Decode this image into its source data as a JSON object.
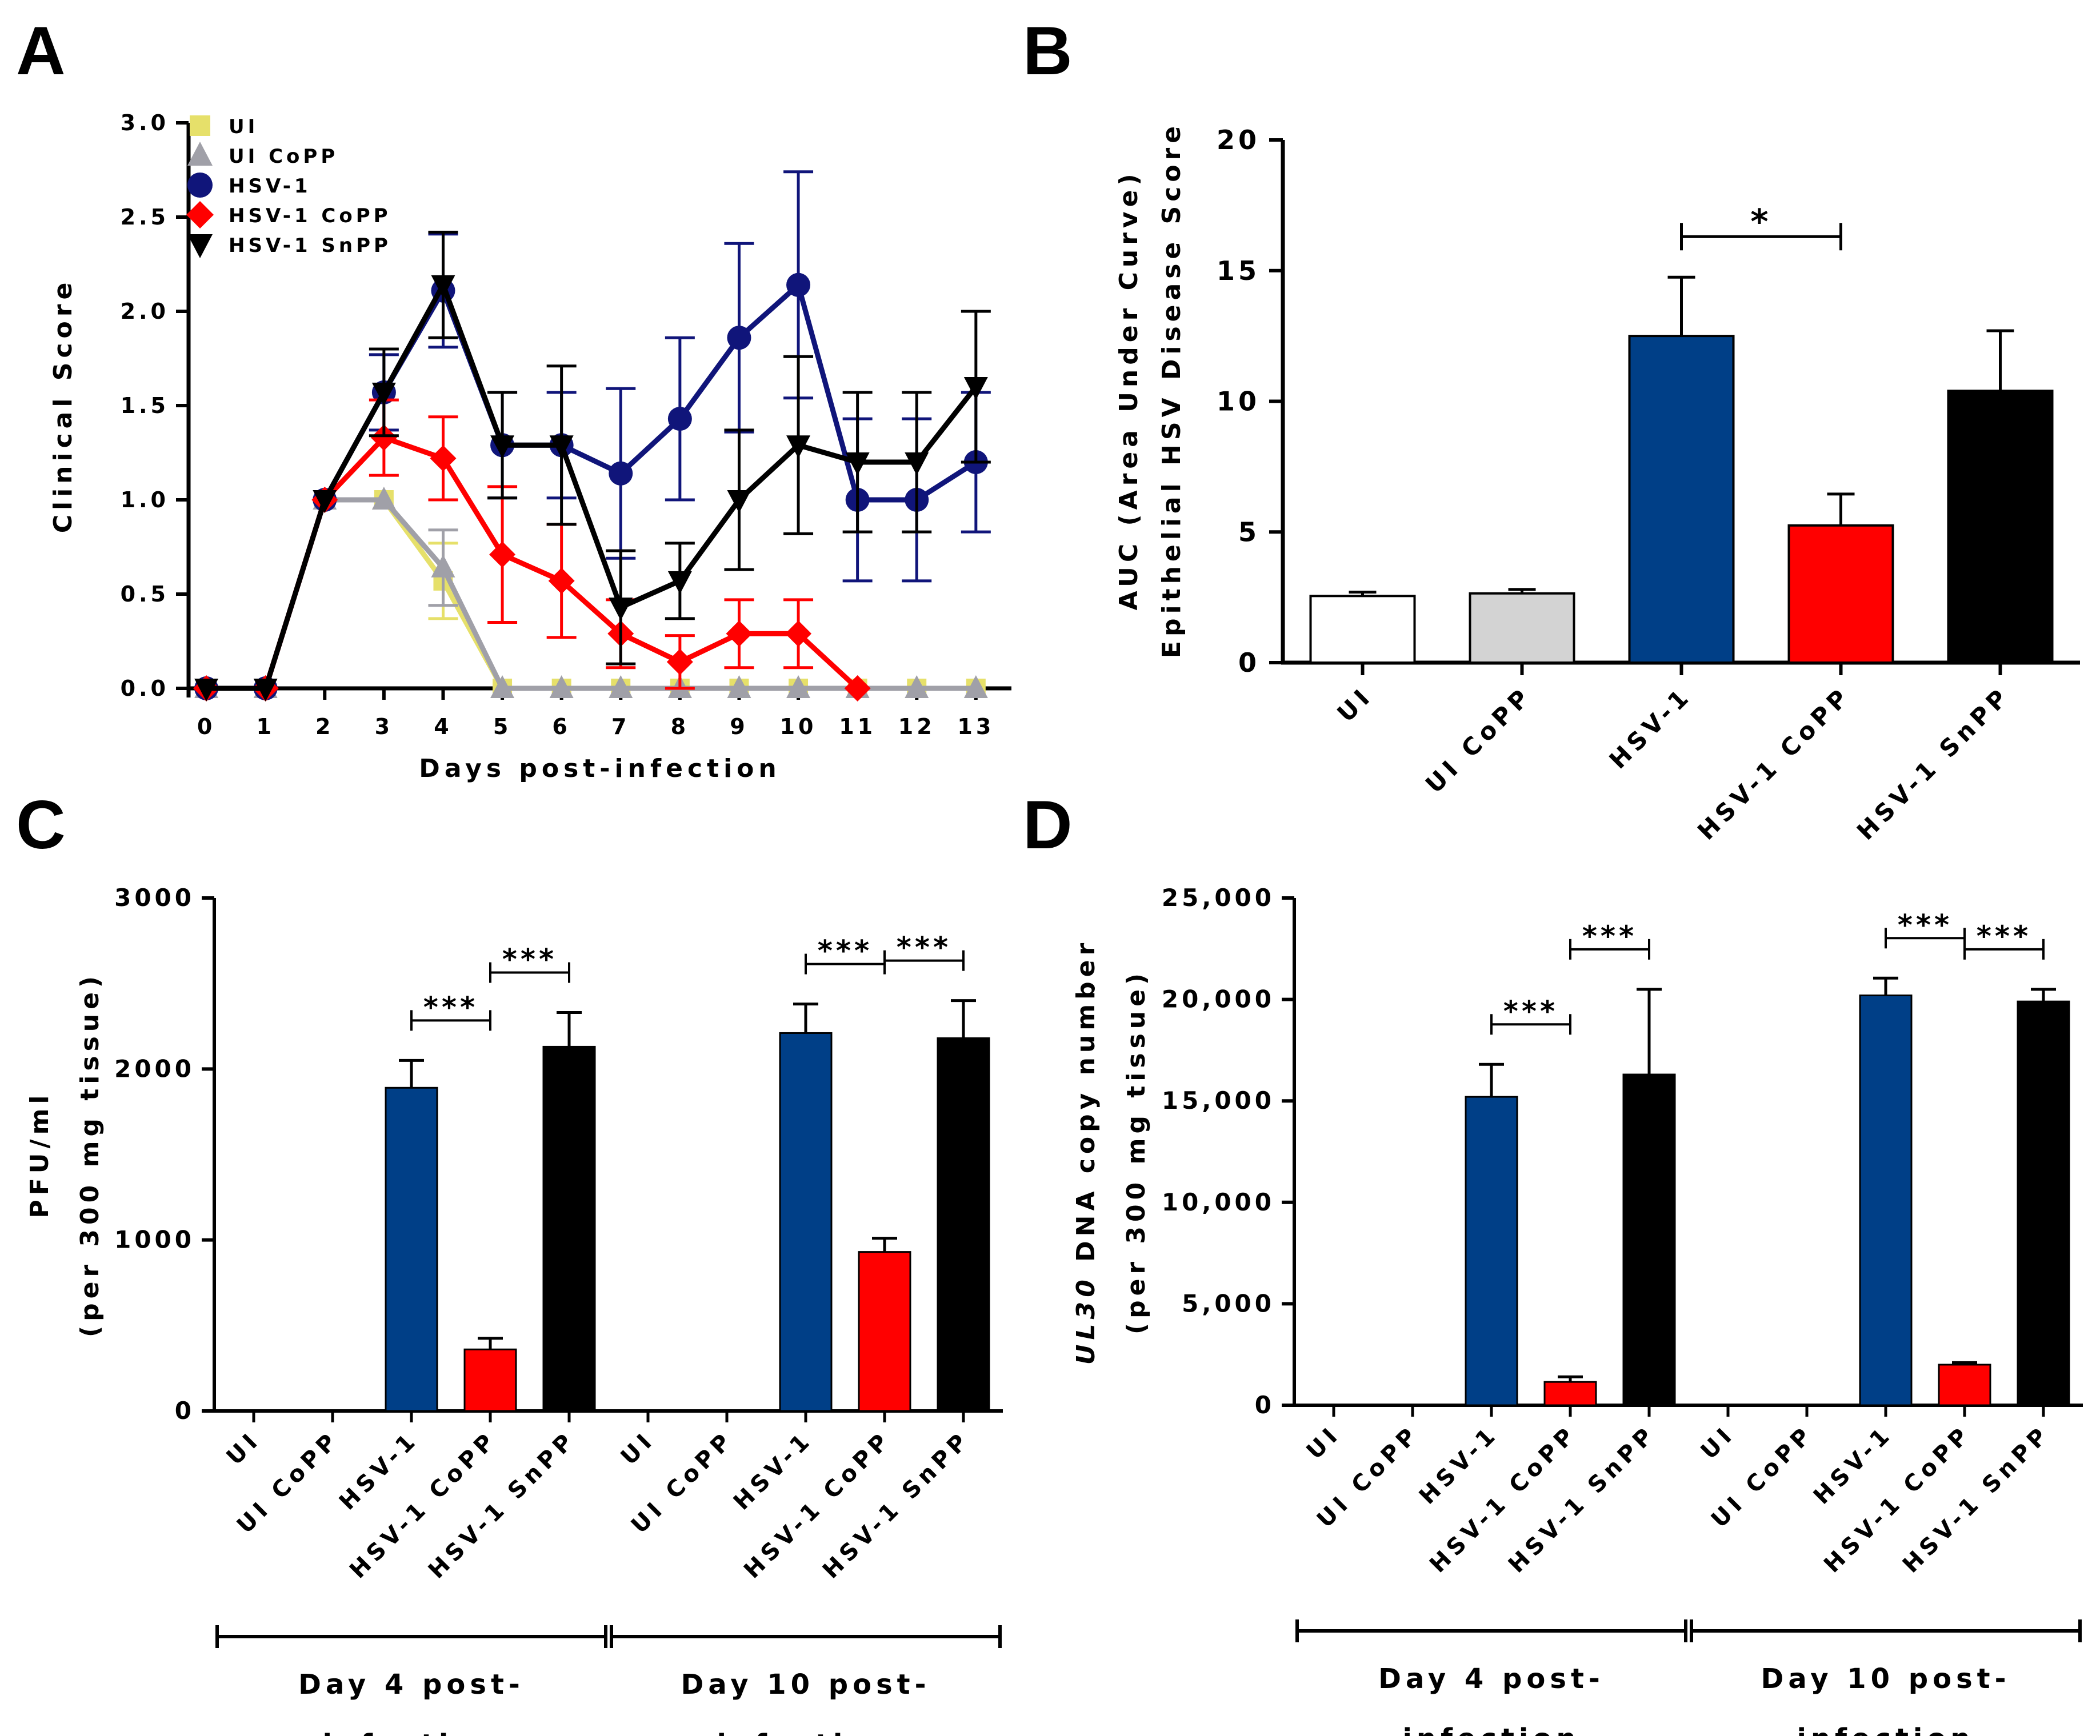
{
  "chart_data": [
    {
      "panel": "A",
      "type": "line",
      "title": "",
      "xlabel": "Days post-infection",
      "ylabel": "Clinical Score",
      "x": [
        0,
        1,
        2,
        3,
        4,
        5,
        6,
        7,
        8,
        9,
        10,
        11,
        12,
        13
      ],
      "xlim": [
        -0.3,
        13.6
      ],
      "ylim": [
        0,
        3.0
      ],
      "yticks": [
        "0.0",
        "0.5",
        "1.0",
        "1.5",
        "2.0",
        "2.5",
        "3.0"
      ],
      "xticks": [
        "0",
        "1",
        "2",
        "3",
        "4",
        "5",
        "6",
        "7",
        "8",
        "9",
        "10",
        "11",
        "12",
        "13"
      ],
      "legend_position": "top-left",
      "series": [
        {
          "name": "UI",
          "color": "#e6e06a",
          "marker": "square",
          "values": [
            0,
            0,
            1.0,
            1.0,
            0.57,
            0,
            0,
            0,
            0,
            0,
            0,
            0,
            0,
            0
          ],
          "errors": [
            0,
            0,
            0,
            0,
            0.2,
            0,
            0,
            0,
            0,
            0,
            0,
            0,
            0,
            0
          ]
        },
        {
          "name": "UI CoPP",
          "color": "#a0a0a8",
          "marker": "triangle-up",
          "values": [
            0,
            0,
            1.0,
            1.0,
            0.64,
            0,
            0,
            0,
            0,
            0,
            0,
            0,
            0,
            0
          ],
          "errors": [
            0,
            0,
            0,
            0,
            0.2,
            0,
            0,
            0,
            0,
            0,
            0,
            0,
            0,
            0
          ]
        },
        {
          "name": "HSV-1",
          "color": "#10157a",
          "marker": "circle",
          "values": [
            0,
            0,
            1.0,
            1.57,
            2.11,
            1.29,
            1.29,
            1.14,
            1.43,
            1.86,
            2.14,
            1.0,
            1.0,
            1.2
          ],
          "errors": [
            0,
            0,
            0,
            0.2,
            0.3,
            0.28,
            0.28,
            0.45,
            0.43,
            0.5,
            0.6,
            0.43,
            0.43,
            0.37
          ]
        },
        {
          "name": "HSV-1 CoPP",
          "color": "#ff0000",
          "marker": "diamond",
          "values": [
            0,
            0,
            1.0,
            1.33,
            1.22,
            0.71,
            0.57,
            0.29,
            0.14,
            0.29,
            0.29,
            0.0,
            null,
            null
          ],
          "errors": [
            0,
            0,
            0,
            0.2,
            0.22,
            0.36,
            0.3,
            0.18,
            0.14,
            0.18,
            0.18,
            0,
            null,
            null
          ]
        },
        {
          "name": "HSV-1 SnPP",
          "color": "#000000",
          "marker": "triangle-down",
          "values": [
            0,
            0,
            1.0,
            1.57,
            2.14,
            1.29,
            1.29,
            0.43,
            0.57,
            1.0,
            1.29,
            1.2,
            1.2,
            1.6
          ],
          "errors": [
            0,
            0,
            0,
            0.23,
            0.28,
            0.28,
            0.42,
            0.3,
            0.2,
            0.37,
            0.47,
            0.37,
            0.37,
            0.4
          ]
        }
      ]
    },
    {
      "panel": "B",
      "type": "bar",
      "title": "",
      "xlabel": "",
      "ylabel": "AUC (Area Under Curve) Epithelial HSV Disease Score",
      "ylabel_lines": [
        "AUC (Area Under Curve)",
        "Epithelial HSV Disease Score"
      ],
      "categories": [
        "UI",
        "UI CoPP",
        "HSV-1",
        "HSV-1 CoPP",
        "HSV-1 SnPP"
      ],
      "values": [
        2.55,
        2.65,
        12.5,
        5.25,
        10.4
      ],
      "errors": [
        0.15,
        0.15,
        2.25,
        1.2,
        2.3
      ],
      "colors": [
        "#ffffff",
        "#d3d3d3",
        "#003f87",
        "#ff0000",
        "#000000"
      ],
      "ylim": [
        0,
        20
      ],
      "yticks": [
        "0",
        "5",
        "10",
        "15",
        "20"
      ],
      "significance": [
        {
          "from": 2,
          "to": 3,
          "label": "*"
        }
      ]
    },
    {
      "panel": "C",
      "type": "bar",
      "title": "",
      "ylabel": "PFU/ml (per 300 mg tissue)",
      "ylabel_lines": [
        "PFU/ml",
        "(per 300 mg tissue)"
      ],
      "ylim": [
        0,
        3000
      ],
      "yticks": [
        "0",
        "1000",
        "2000",
        "3000"
      ],
      "categories": [
        "UI",
        "UI CoPP",
        "HSV-1",
        "HSV-1 CoPP",
        "HSV-1 SnPP"
      ],
      "colors": [
        "#ffffff",
        "#d3d3d3",
        "#003f87",
        "#ff0000",
        "#000000"
      ],
      "groups": [
        {
          "label_lines": [
            "Day 4 post-",
            "infection"
          ],
          "values": [
            0,
            0,
            1890,
            360,
            2130
          ],
          "errors": [
            0,
            0,
            160,
            65,
            200
          ]
        },
        {
          "label_lines": [
            "Day 10 post-",
            "infection"
          ],
          "values": [
            0,
            0,
            2210,
            930,
            2180
          ],
          "errors": [
            0,
            0,
            170,
            80,
            220
          ]
        }
      ],
      "significance": [
        {
          "group": 0,
          "from": 2,
          "to": 3,
          "label": "***"
        },
        {
          "group": 0,
          "from": 3,
          "to": 4,
          "label": "***"
        },
        {
          "group": 1,
          "from": 2,
          "to": 3,
          "label": "***"
        },
        {
          "group": 1,
          "from": 3,
          "to": 4,
          "label": "***"
        }
      ]
    },
    {
      "panel": "D",
      "type": "bar",
      "title": "",
      "ylabel": "UL30 DNA copy number (per 300 mg tissue)",
      "ylabel_italic": "UL30",
      "ylabel_rest": " DNA copy number",
      "ylabel_line2": "(per 300 mg tissue)",
      "ylim": [
        0,
        25000
      ],
      "yticks": [
        "0",
        "5,000",
        "10,000",
        "15,000",
        "20,000",
        "25,000"
      ],
      "categories": [
        "UI",
        "UI CoPP",
        "HSV-1",
        "HSV-1 CoPP",
        "HSV-1 SnPP"
      ],
      "colors": [
        "#ffffff",
        "#d3d3d3",
        "#003f87",
        "#ff0000",
        "#000000"
      ],
      "groups": [
        {
          "label_lines": [
            "Day 4 post-",
            "infection"
          ],
          "values": [
            0,
            0,
            15200,
            1150,
            16300
          ],
          "errors": [
            0,
            0,
            1600,
            250,
            4200
          ]
        },
        {
          "label_lines": [
            "Day 10 post-",
            "infection"
          ],
          "values": [
            0,
            0,
            20200,
            2000,
            19900
          ],
          "errors": [
            0,
            0,
            850,
            100,
            600
          ]
        }
      ],
      "significance": [
        {
          "group": 0,
          "from": 2,
          "to": 3,
          "label": "***"
        },
        {
          "group": 0,
          "from": 3,
          "to": 4,
          "label": "***"
        },
        {
          "group": 1,
          "from": 2,
          "to": 3,
          "label": "***"
        },
        {
          "group": 1,
          "from": 3,
          "to": 4,
          "label": "***"
        }
      ]
    }
  ]
}
